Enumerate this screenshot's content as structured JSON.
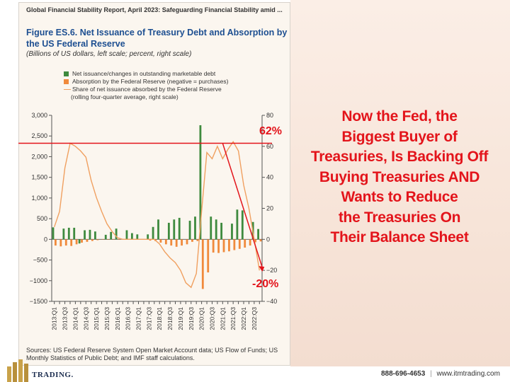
{
  "report_header": "Global Financial Stability Report, April 2023: Safeguarding Financial Stability amid ...",
  "figure": {
    "title": "Figure ES.6. Net Issuance of Treasury Debt and Absorption by the US Federal Reserve",
    "subtitle": "(Billions of US dollars, left scale; percent, right scale)"
  },
  "legend": {
    "net_issuance": "Net issuance/changes in outstanding marketable debt",
    "absorption": "Absorption by the Federal Reserve (negative = purchases)",
    "share_line1": "Share of net issuance absorbed by the Federal Reserve",
    "share_line2": "(rolling four-quarter average, right scale)"
  },
  "colors": {
    "net_issuance": "#3e8a3e",
    "absorption": "#f08a3c",
    "share_line": "#f0a060",
    "annotation": "#e3141b",
    "title_blue": "#1d4f91"
  },
  "chart_data": {
    "type": "bar",
    "x": [
      "2013:Q1",
      "2013:Q2",
      "2013:Q3",
      "2013:Q4",
      "2014:Q1",
      "2014:Q2",
      "2014:Q3",
      "2014:Q4",
      "2015:Q1",
      "2015:Q2",
      "2015:Q3",
      "2015:Q4",
      "2016:Q1",
      "2016:Q2",
      "2016:Q3",
      "2016:Q4",
      "2017:Q1",
      "2017:Q2",
      "2017:Q3",
      "2017:Q4",
      "2018:Q1",
      "2018:Q2",
      "2018:Q3",
      "2018:Q4",
      "2019:Q1",
      "2019:Q2",
      "2019:Q3",
      "2019:Q4",
      "2020:Q1",
      "2020:Q2",
      "2020:Q3",
      "2020:Q4",
      "2021:Q1",
      "2021:Q2",
      "2021:Q3",
      "2021:Q4",
      "2022:Q1",
      "2022:Q2",
      "2022:Q3",
      "2022:Q4"
    ],
    "tick_labels": [
      "2013:Q1",
      "2013:Q3",
      "2014:Q1",
      "2014:Q3",
      "2015:Q1",
      "2015:Q3",
      "2016:Q1",
      "2016:Q3",
      "2017:Q1",
      "2017:Q3",
      "2018:Q1",
      "2018:Q3",
      "2019:Q1",
      "2019:Q3",
      "2020:Q1",
      "2020:Q3",
      "2021:Q1",
      "2021:Q3",
      "2022:Q1",
      "2022:Q3"
    ],
    "series": [
      {
        "name": "Net issuance/changes in outstanding marketable debt",
        "type": "bar",
        "axis": "left",
        "values": [
          290,
          0,
          260,
          280,
          280,
          -100,
          220,
          230,
          190,
          0,
          110,
          180,
          260,
          0,
          220,
          150,
          120,
          0,
          120,
          300,
          480,
          0,
          400,
          480,
          520,
          0,
          450,
          550,
          2760,
          0,
          550,
          480,
          400,
          0,
          380,
          720,
          700,
          0,
          420,
          250
        ]
      },
      {
        "name": "Absorption by the Federal Reserve (negative = purchases)",
        "type": "bar",
        "axis": "left",
        "values": [
          -150,
          -170,
          -150,
          -160,
          -120,
          -80,
          -60,
          -40,
          -20,
          -10,
          -10,
          -10,
          -10,
          -10,
          -10,
          -10,
          -10,
          -10,
          -30,
          -40,
          -80,
          -120,
          -150,
          -180,
          -150,
          -120,
          -60,
          -40,
          -1200,
          -800,
          -320,
          -330,
          -310,
          -290,
          -260,
          -230,
          -200,
          -150,
          -70,
          -50
        ]
      },
      {
        "name": "Share of net issuance absorbed by the Federal Reserve (rolling four-quarter average, right scale)",
        "type": "line",
        "axis": "right",
        "values": [
          8,
          18,
          46,
          62,
          60,
          57,
          53,
          38,
          27,
          18,
          10,
          5,
          1,
          0,
          0,
          0,
          0,
          0,
          0,
          0,
          -3,
          -8,
          -12,
          -15,
          -20,
          -28,
          -31,
          -22,
          18,
          56,
          52,
          60,
          52,
          58,
          63,
          57,
          35,
          20,
          0,
          -20
        ]
      }
    ],
    "y_left": {
      "range": [
        -1500,
        3000
      ],
      "ticks": [
        3000,
        2500,
        2000,
        1500,
        1000,
        500,
        0,
        -500,
        -1000,
        -1500
      ],
      "tick_labels": [
        "3,000",
        "2,500",
        "2,000",
        "1,500",
        "1,000",
        "500",
        "0",
        "−500",
        "−1000",
        "−1500"
      ]
    },
    "y_right": {
      "range": [
        -40,
        80
      ],
      "ticks": [
        80,
        60,
        40,
        20,
        0,
        -20,
        -40
      ],
      "tick_labels": [
        "80",
        "60",
        "40",
        "20",
        "0",
        "−20",
        "−40"
      ]
    }
  },
  "annotations": {
    "peak_label": "62%",
    "trough_label": "-20%"
  },
  "headline_lines": [
    "Now the Fed, the",
    "Biggest Buyer of",
    "Treasuries, Is Backing Off",
    "Buying Treasuries AND",
    "Wants to Reduce",
    "the Treasuries On",
    "Their Balance Sheet"
  ],
  "sources": "Sources: US Federal Reserve System Open Market Account data; US Flow of Funds; US Monthly Statistics of Public Debt; and IMF staff calculations.",
  "footer": {
    "brand": "TRADING.",
    "phone": "888-696-4653",
    "separator": "|",
    "website": "www.itmtrading.com"
  }
}
